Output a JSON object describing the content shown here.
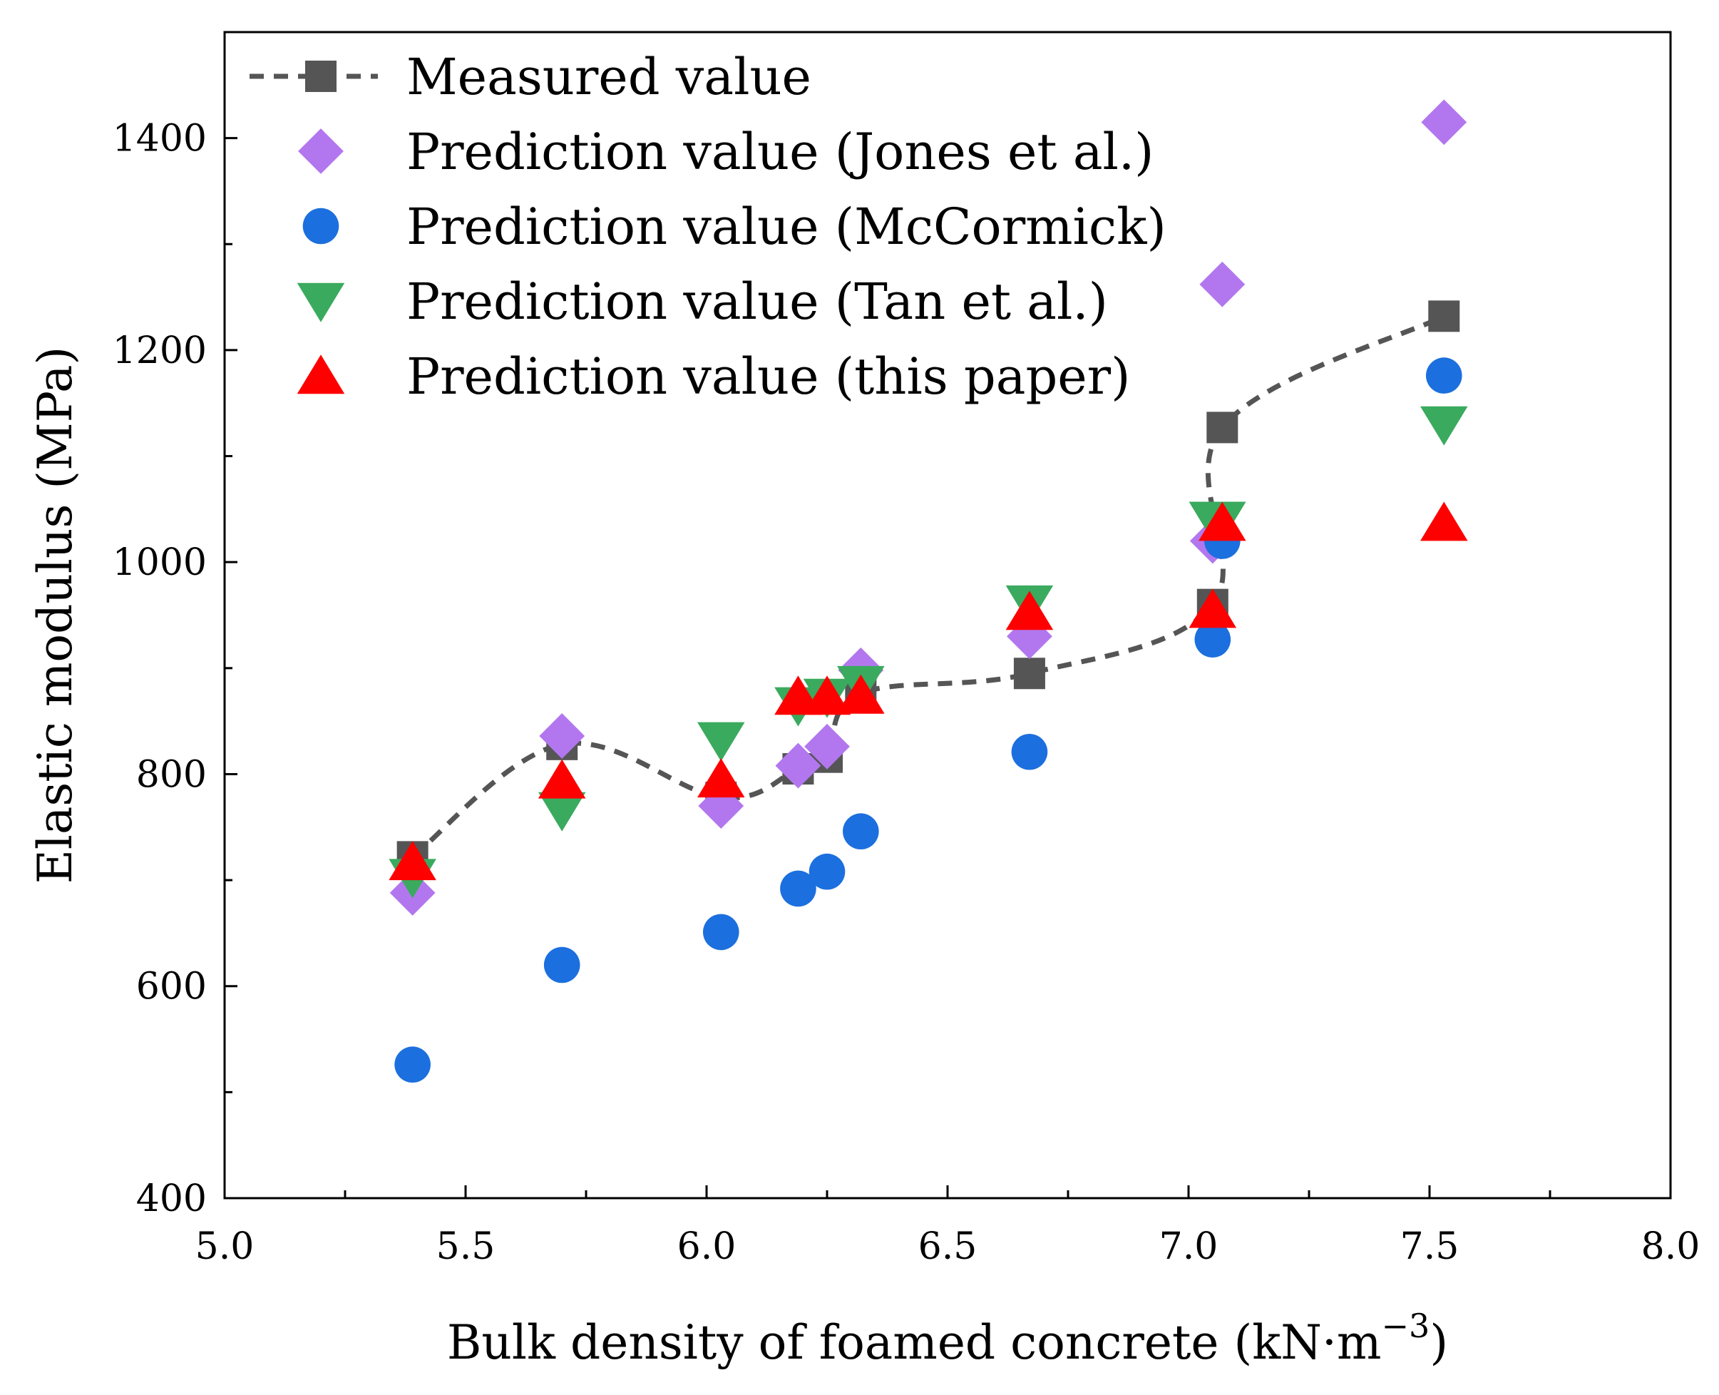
{
  "chart_data": {
    "type": "scatter",
    "xlabel": "Bulk density of foamed concrete (kN·m",
    "xlabel_exponent": "−3",
    "xlabel_close": ")",
    "ylabel": "Elastic modulus (MPa)",
    "xlim": [
      5.0,
      8.0
    ],
    "ylim": [
      400,
      1500
    ],
    "x_ticks": [
      "5.0",
      "5.5",
      "6.0",
      "6.5",
      "7.0",
      "7.5",
      "8.0"
    ],
    "x_tick_values": [
      5.0,
      5.5,
      6.0,
      6.5,
      7.0,
      7.5,
      8.0
    ],
    "y_ticks": [
      "400",
      "600",
      "800",
      "1000",
      "1200",
      "1400"
    ],
    "y_tick_values": [
      400,
      600,
      800,
      1000,
      1200,
      1400
    ],
    "legend_position": "top-left",
    "series": [
      {
        "name": "Measured value",
        "marker": "square",
        "color": "#555555",
        "line": "dashed",
        "points": [
          {
            "x": 5.39,
            "y": 722
          },
          {
            "x": 5.7,
            "y": 828
          },
          {
            "x": 6.03,
            "y": 778
          },
          {
            "x": 6.19,
            "y": 805
          },
          {
            "x": 6.25,
            "y": 816
          },
          {
            "x": 6.32,
            "y": 876
          },
          {
            "x": 6.67,
            "y": 895
          },
          {
            "x": 7.05,
            "y": 960
          },
          {
            "x": 7.07,
            "y": 1127
          },
          {
            "x": 7.53,
            "y": 1232
          }
        ]
      },
      {
        "name": "Prediction value (Jones et al.)",
        "marker": "diamond",
        "color": "#b277ee",
        "points": [
          {
            "x": 5.39,
            "y": 688
          },
          {
            "x": 5.7,
            "y": 836
          },
          {
            "x": 6.03,
            "y": 770
          },
          {
            "x": 6.19,
            "y": 808
          },
          {
            "x": 6.25,
            "y": 826
          },
          {
            "x": 6.32,
            "y": 898
          },
          {
            "x": 6.67,
            "y": 930
          },
          {
            "x": 7.05,
            "y": 1020
          },
          {
            "x": 7.07,
            "y": 1262
          },
          {
            "x": 7.53,
            "y": 1415
          }
        ]
      },
      {
        "name": "Prediction value (McCormick)",
        "marker": "circle",
        "color": "#1c6fde",
        "points": [
          {
            "x": 5.39,
            "y": 526
          },
          {
            "x": 5.7,
            "y": 620
          },
          {
            "x": 6.03,
            "y": 651
          },
          {
            "x": 6.19,
            "y": 692
          },
          {
            "x": 6.25,
            "y": 708
          },
          {
            "x": 6.32,
            "y": 746
          },
          {
            "x": 6.67,
            "y": 821
          },
          {
            "x": 7.05,
            "y": 927
          },
          {
            "x": 7.07,
            "y": 1020
          },
          {
            "x": 7.53,
            "y": 1176
          }
        ]
      },
      {
        "name": "Prediction value (Tan et al.)",
        "marker": "triangle-down",
        "color": "#3aaa5e",
        "points": [
          {
            "x": 5.39,
            "y": 703
          },
          {
            "x": 5.7,
            "y": 766
          },
          {
            "x": 6.03,
            "y": 832
          },
          {
            "x": 6.19,
            "y": 865
          },
          {
            "x": 6.25,
            "y": 873
          },
          {
            "x": 6.32,
            "y": 885
          },
          {
            "x": 6.67,
            "y": 961
          },
          {
            "x": 7.05,
            "y": 1040
          },
          {
            "x": 7.07,
            "y": 1040
          },
          {
            "x": 7.53,
            "y": 1130
          }
        ]
      },
      {
        "name": "Prediction value (this paper)",
        "marker": "triangle-up",
        "color": "#ff0000",
        "points": [
          {
            "x": 5.39,
            "y": 717
          },
          {
            "x": 5.7,
            "y": 794
          },
          {
            "x": 6.03,
            "y": 795
          },
          {
            "x": 6.19,
            "y": 873
          },
          {
            "x": 6.25,
            "y": 873
          },
          {
            "x": 6.32,
            "y": 874
          },
          {
            "x": 6.67,
            "y": 953
          },
          {
            "x": 7.05,
            "y": 955
          },
          {
            "x": 7.07,
            "y": 1037
          },
          {
            "x": 7.53,
            "y": 1037
          }
        ]
      }
    ]
  }
}
